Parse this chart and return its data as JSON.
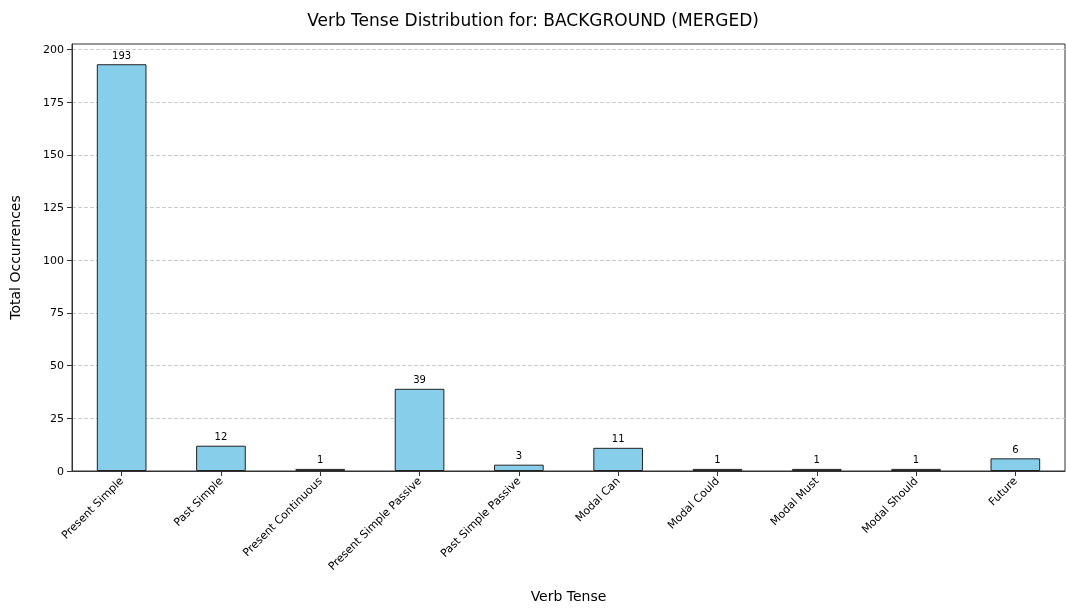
{
  "chart_data": {
    "type": "bar",
    "title": "Verb Tense Distribution for: BACKGROUND (MERGED)",
    "xlabel": "Verb Tense",
    "ylabel": "Total Occurrences",
    "categories": [
      "Present Simple",
      "Past Simple",
      "Present Continuous",
      "Present Simple Passive",
      "Past Simple Passive",
      "Modal Can",
      "Modal Could",
      "Modal Must",
      "Modal Should",
      "Future"
    ],
    "values": [
      193,
      12,
      1,
      39,
      3,
      11,
      1,
      1,
      1,
      6
    ],
    "color": "#87ceeb",
    "ylim": [
      0,
      202.6
    ],
    "yticks": [
      0,
      25,
      50,
      75,
      100,
      125,
      150,
      175,
      200
    ],
    "grid": "y",
    "data_labels": true
  }
}
